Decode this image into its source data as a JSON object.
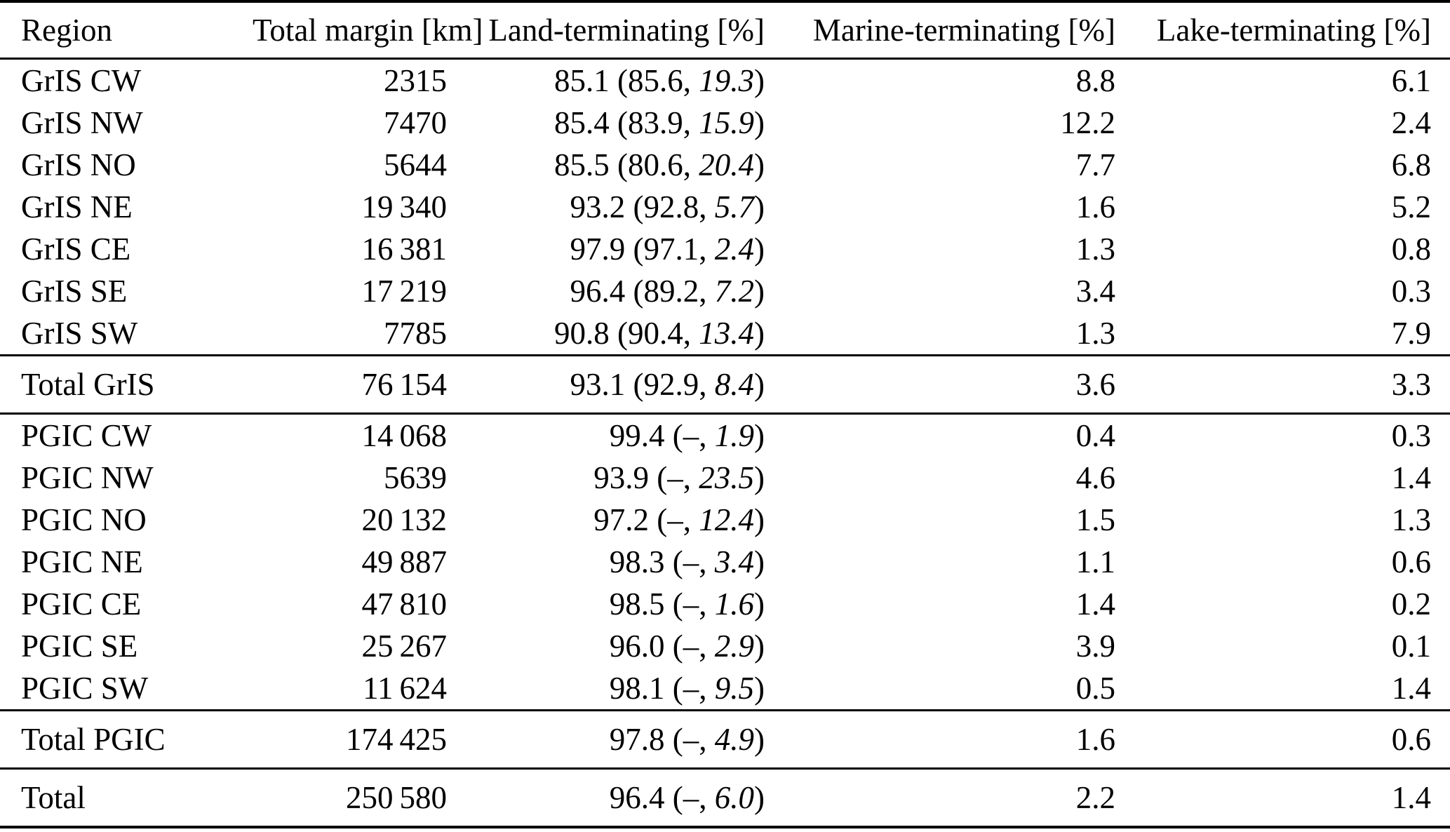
{
  "table": {
    "columns": {
      "region": "Region",
      "total_margin": "Total margin [km]",
      "land": "Land-terminating [%]",
      "marine": "Marine-terminating [%]",
      "lake": "Lake-terminating [%]"
    },
    "land_format": {
      "open": " (",
      "sep": ", ",
      "close": ")"
    },
    "gris_rows": [
      {
        "region": "GrIS CW",
        "total_margin": "2315",
        "land": {
          "main": "85.1",
          "comp": "85.6",
          "frac": "19.3"
        },
        "marine": "8.8",
        "lake": "6.1"
      },
      {
        "region": "GrIS NW",
        "total_margin": "7470",
        "land": {
          "main": "85.4",
          "comp": "83.9",
          "frac": "15.9"
        },
        "marine": "12.2",
        "lake": "2.4"
      },
      {
        "region": "GrIS NO",
        "total_margin": "5644",
        "land": {
          "main": "85.5",
          "comp": "80.6",
          "frac": "20.4"
        },
        "marine": "7.7",
        "lake": "6.8"
      },
      {
        "region": "GrIS NE",
        "total_margin": "19 340",
        "land": {
          "main": "93.2",
          "comp": "92.8",
          "frac": "5.7"
        },
        "marine": "1.6",
        "lake": "5.2"
      },
      {
        "region": "GrIS CE",
        "total_margin": "16 381",
        "land": {
          "main": "97.9",
          "comp": "97.1",
          "frac": "2.4"
        },
        "marine": "1.3",
        "lake": "0.8"
      },
      {
        "region": "GrIS SE",
        "total_margin": "17 219",
        "land": {
          "main": "96.4",
          "comp": "89.2",
          "frac": "7.2"
        },
        "marine": "3.4",
        "lake": "0.3"
      },
      {
        "region": "GrIS SW",
        "total_margin": "7785",
        "land": {
          "main": "90.8",
          "comp": "90.4",
          "frac": "13.4"
        },
        "marine": "1.3",
        "lake": "7.9"
      }
    ],
    "total_gris": {
      "region": "Total GrIS",
      "total_margin": "76 154",
      "land": {
        "main": "93.1",
        "comp": "92.9",
        "frac": "8.4"
      },
      "marine": "3.6",
      "lake": "3.3"
    },
    "pgic_rows": [
      {
        "region": "PGIC CW",
        "total_margin": "14 068",
        "land": {
          "main": "99.4",
          "comp": "–",
          "frac": "1.9"
        },
        "marine": "0.4",
        "lake": "0.3"
      },
      {
        "region": "PGIC NW",
        "total_margin": "5639",
        "land": {
          "main": "93.9",
          "comp": "–",
          "frac": "23.5"
        },
        "marine": "4.6",
        "lake": "1.4"
      },
      {
        "region": "PGIC NO",
        "total_margin": "20 132",
        "land": {
          "main": "97.2",
          "comp": "–",
          "frac": "12.4"
        },
        "marine": "1.5",
        "lake": "1.3"
      },
      {
        "region": "PGIC NE",
        "total_margin": "49 887",
        "land": {
          "main": "98.3",
          "comp": "–",
          "frac": "3.4"
        },
        "marine": "1.1",
        "lake": "0.6"
      },
      {
        "region": "PGIC CE",
        "total_margin": "47 810",
        "land": {
          "main": "98.5",
          "comp": "–",
          "frac": "1.6"
        },
        "marine": "1.4",
        "lake": "0.2"
      },
      {
        "region": "PGIC SE",
        "total_margin": "25 267",
        "land": {
          "main": "96.0",
          "comp": "–",
          "frac": "2.9"
        },
        "marine": "3.9",
        "lake": "0.1"
      },
      {
        "region": "PGIC SW",
        "total_margin": "11 624",
        "land": {
          "main": "98.1",
          "comp": "–",
          "frac": "9.5"
        },
        "marine": "0.5",
        "lake": "1.4"
      }
    ],
    "total_pgic": {
      "region": "Total PGIC",
      "total_margin": "174 425",
      "land": {
        "main": "97.8",
        "comp": "–",
        "frac": "4.9"
      },
      "marine": "1.6",
      "lake": "0.6"
    },
    "total_all": {
      "region": "Total",
      "total_margin": "250 580",
      "land": {
        "main": "96.4",
        "comp": "–",
        "frac": "6.0"
      },
      "marine": "2.2",
      "lake": "1.4"
    }
  }
}
